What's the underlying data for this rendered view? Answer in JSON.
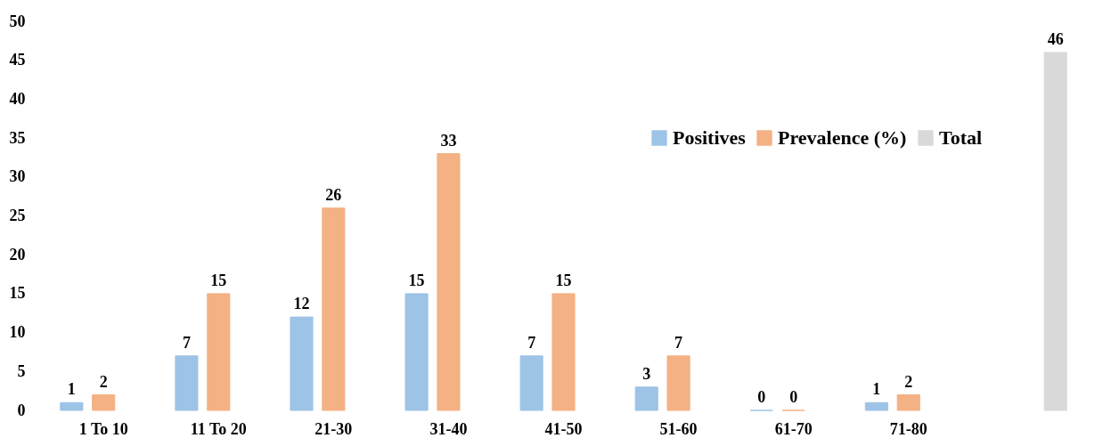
{
  "chart_data": {
    "type": "bar",
    "categories": [
      "1 To 10",
      "11 To 20",
      "21-30",
      "31-40",
      "41-50",
      "51-60",
      "61-70",
      "71-80",
      null
    ],
    "series": [
      {
        "name": "Positives",
        "color": "#9dc3e6",
        "values": [
          1,
          7,
          12,
          15,
          7,
          3,
          0,
          1,
          null
        ]
      },
      {
        "name": "Prevalence (%)",
        "color": "#f4b183",
        "values": [
          2,
          15,
          26,
          33,
          15,
          7,
          0,
          2,
          null
        ]
      },
      {
        "name": "Total",
        "color": "#d9d9d9",
        "values": [
          null,
          null,
          null,
          null,
          null,
          null,
          null,
          null,
          46
        ]
      }
    ],
    "ylim": [
      0,
      50
    ],
    "yticks": [
      0,
      5,
      10,
      15,
      20,
      25,
      30,
      35,
      40,
      45,
      50
    ],
    "data_labels": true,
    "grid": false,
    "legend": "top right"
  }
}
